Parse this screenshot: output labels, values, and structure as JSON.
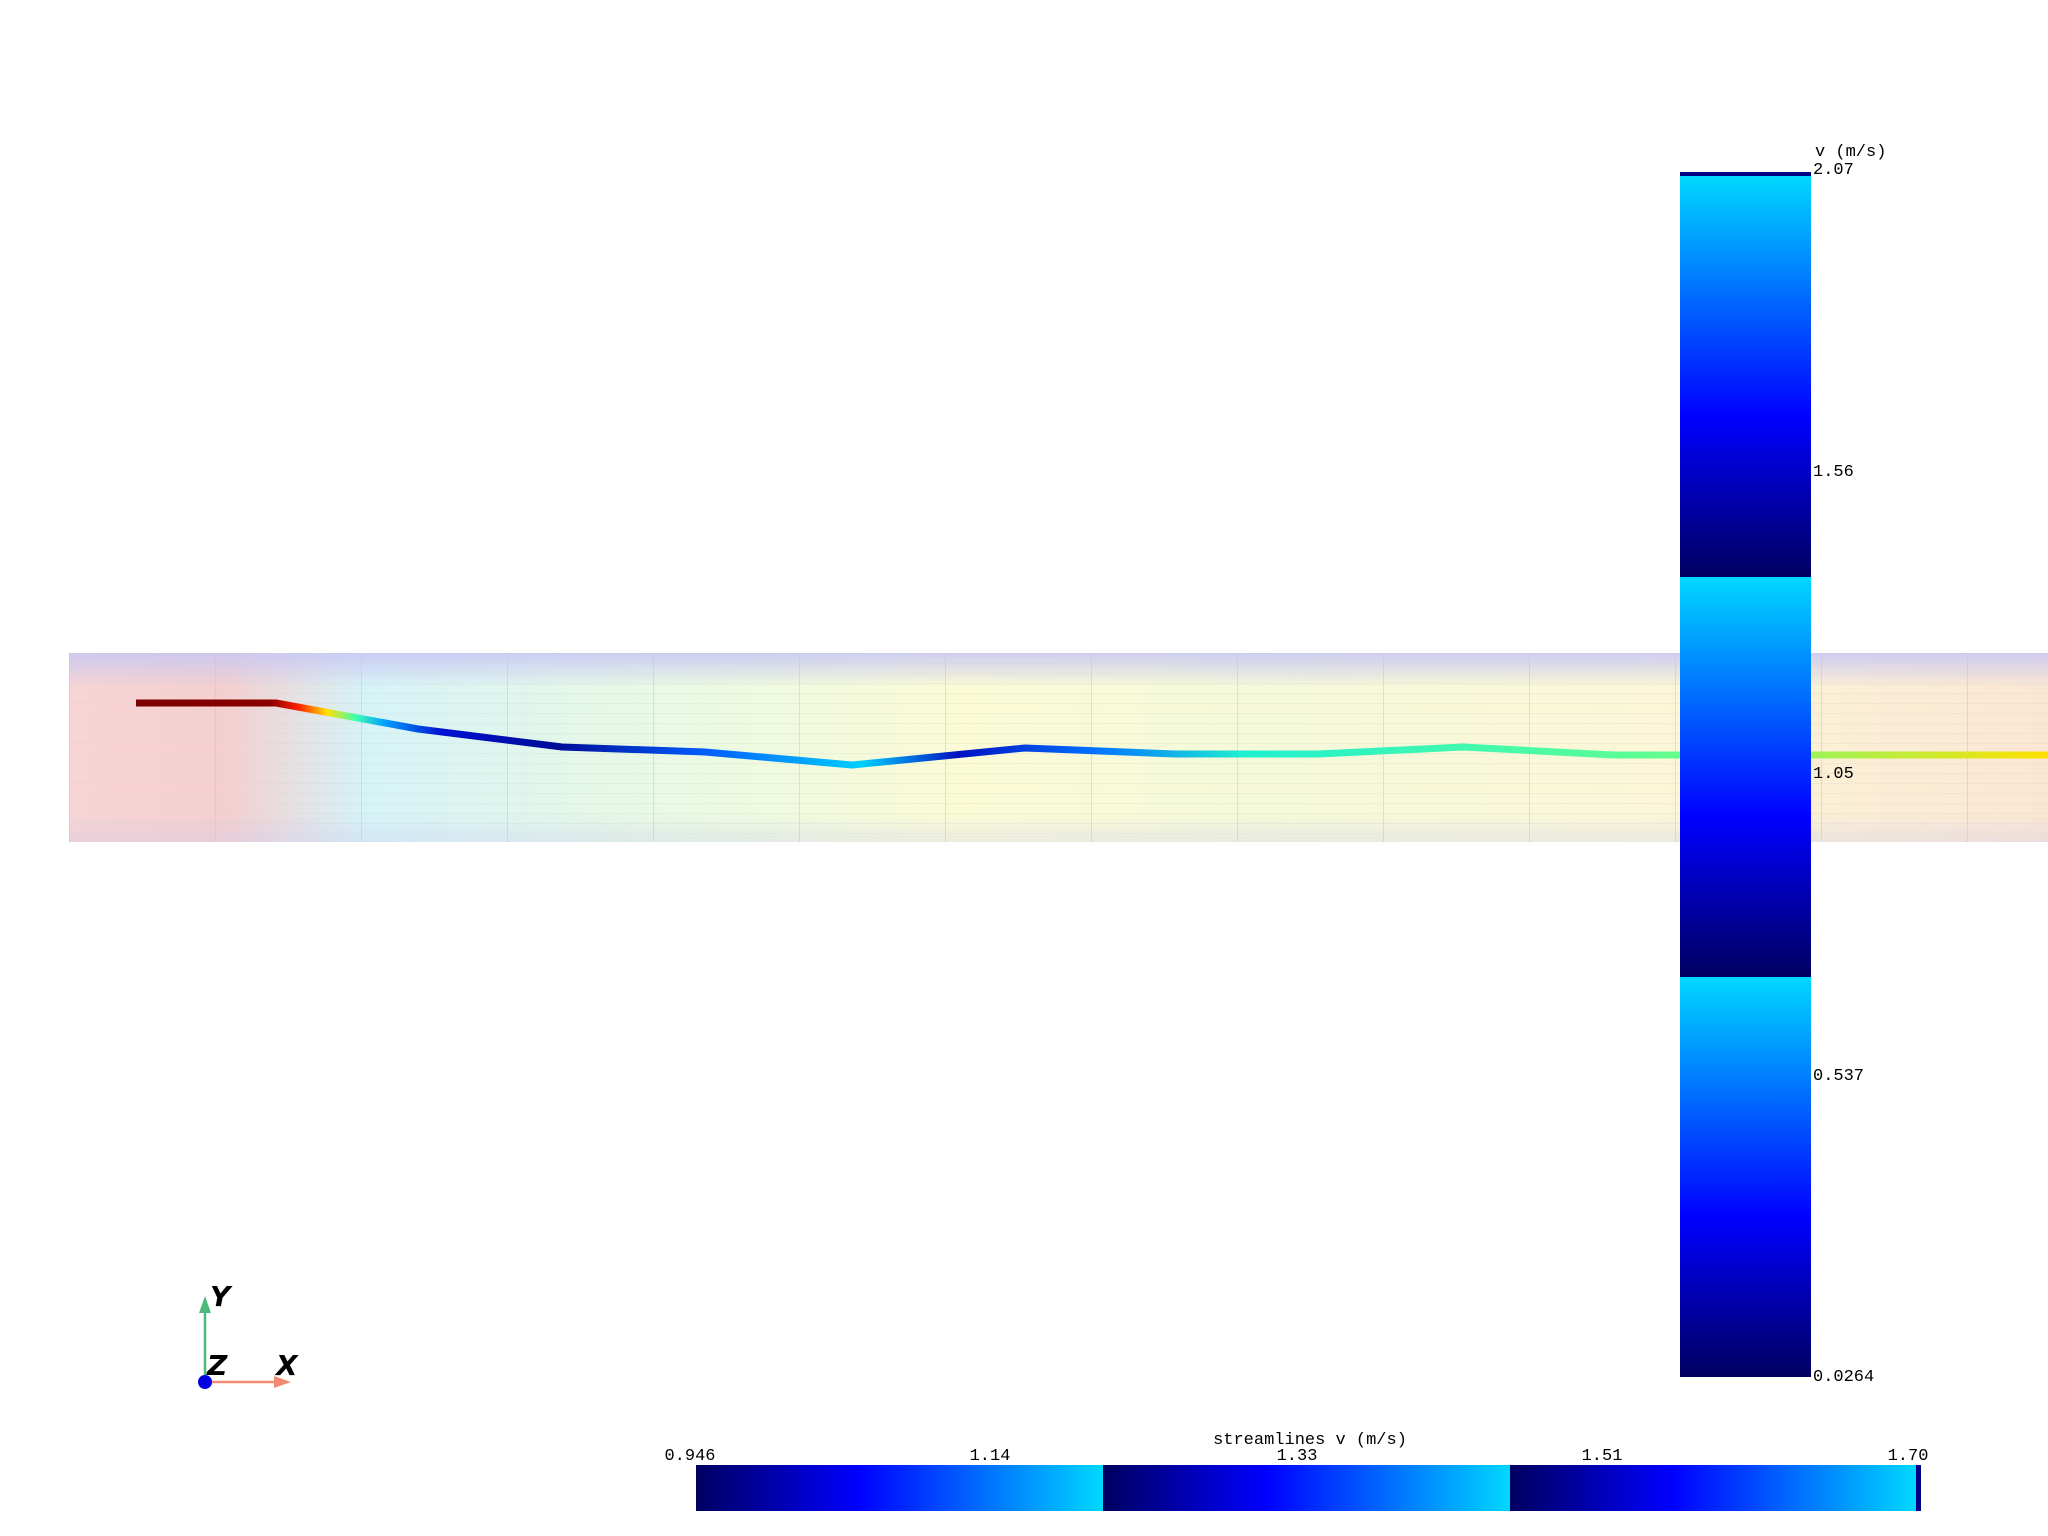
{
  "scalar_bar_vertical": {
    "title": "v (m/s)",
    "labels": [
      "2.07",
      "1.56",
      "1.05",
      "0.537",
      "0.0264"
    ]
  },
  "scalar_bar_horizontal": {
    "title": "streamlines v (m/s)",
    "labels": [
      "0.946",
      "1.14",
      "1.33",
      "1.51",
      "1.70"
    ]
  },
  "axes": {
    "x": "X",
    "y": "Y",
    "z": "Z"
  }
}
